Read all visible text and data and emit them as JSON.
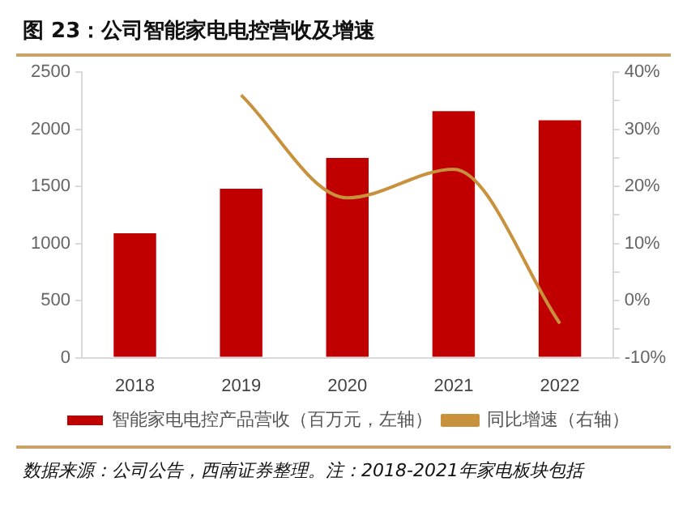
{
  "chart_data": {
    "type": "bar",
    "title": "图 23：公司智能家电电控营收及增速",
    "categories": [
      "2018",
      "2019",
      "2020",
      "2021",
      "2022"
    ],
    "series": [
      {
        "name": "智能家电电控产品营收（百万元，左轴）",
        "color": "#c00000",
        "values": [
          1090,
          1480,
          1750,
          2160,
          2080
        ]
      },
      {
        "name": "同比增速（右轴）",
        "type": "line",
        "axis": "y2",
        "color": "#c8913c",
        "values": [
          null,
          36,
          18,
          23,
          -4
        ]
      }
    ],
    "ylim": [
      0,
      2500
    ],
    "yticks": [
      0,
      500,
      1000,
      1500,
      2000,
      2500
    ],
    "y2lim": [
      -10,
      40
    ],
    "y2ticks": [
      {
        "value": -10,
        "label": "-10%"
      },
      {
        "value": -5,
        "label": null
      },
      {
        "value": 0,
        "label": "0%"
      },
      {
        "value": 5,
        "label": null
      },
      {
        "value": 10,
        "label": "10%"
      },
      {
        "value": 15,
        "label": null
      },
      {
        "value": 20,
        "label": "20%"
      },
      {
        "value": 25,
        "label": null
      },
      {
        "value": 30,
        "label": "30%"
      },
      {
        "value": 35,
        "label": null
      },
      {
        "value": 40,
        "label": "40%"
      }
    ],
    "grid": false,
    "legend": "bottom",
    "annotations": [
      "数据来源：公司公告，西南证券整理。注：2018-2021年家电板块包括"
    ]
  }
}
